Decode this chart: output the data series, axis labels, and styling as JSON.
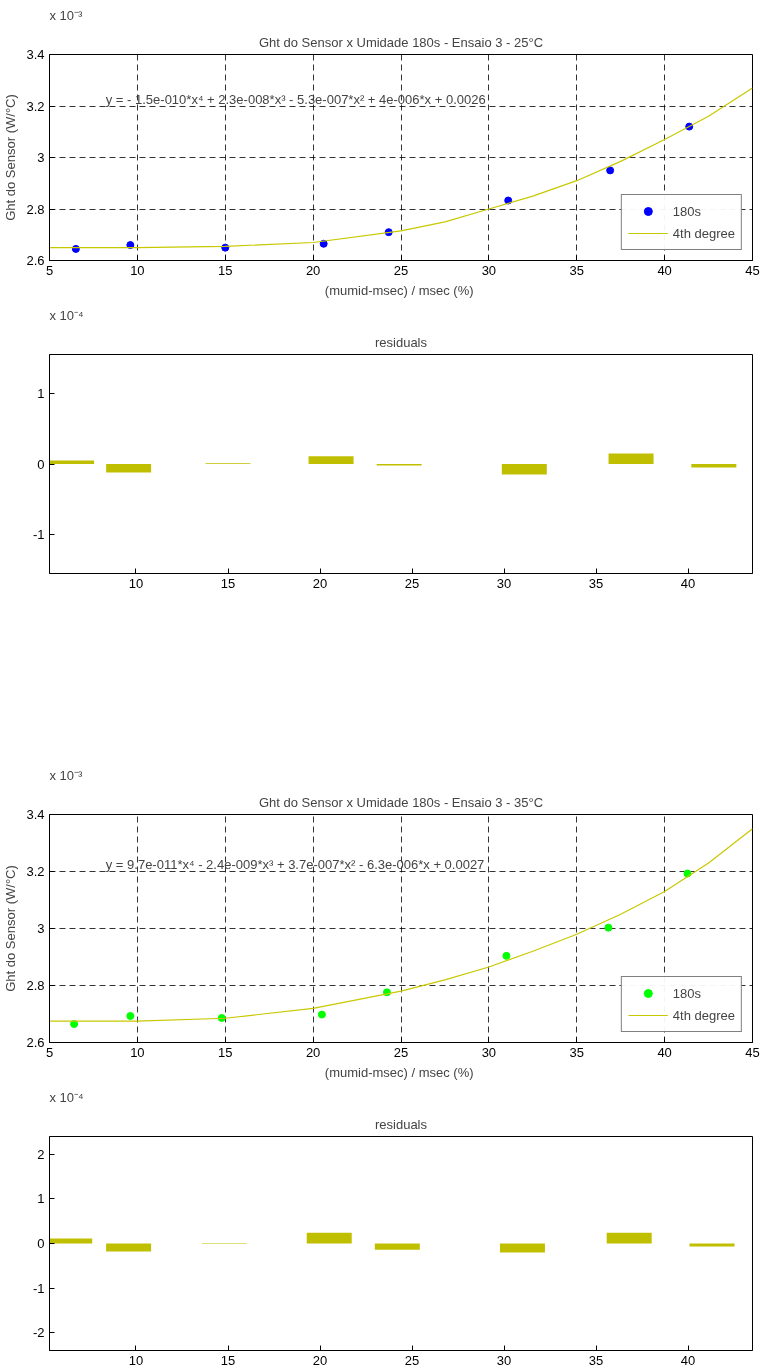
{
  "chart_data": [
    {
      "type": "scatter",
      "title": "Ght do Sensor x Umidade 180s - Ensaio 3 - 25°C",
      "xlabel": "(mumid-msec) / msec  (%)",
      "ylabel": "Ght do Sensor (W/°C)",
      "annotations": [
        "x 10⁻³",
        "y = - 1.5e-010*x⁴ + 2.3e-008*x³ - 5.3e-007*x² + 4e-006*x + 0.0026"
      ],
      "series": [
        {
          "name": "180s",
          "type": "scatter",
          "marker": "circle",
          "color": "#0000ff",
          "x": [
            6.5,
            9.6,
            15.0,
            20.6,
            24.3,
            31.1,
            36.9,
            41.4
          ],
          "values": [
            2.645,
            2.66,
            2.65,
            2.665,
            2.71,
            2.833,
            2.95,
            3.12
          ]
        },
        {
          "name": "4th degree",
          "type": "line",
          "color": "#c8c800",
          "x": [
            5,
            10,
            15,
            20,
            25,
            27.5,
            30,
            32.5,
            35,
            37.5,
            40,
            42.5,
            45
          ],
          "marker": "none",
          "values": [
            2.65,
            2.65,
            2.655,
            2.67,
            2.715,
            2.75,
            2.8,
            2.85,
            2.91,
            2.985,
            3.07,
            3.16,
            3.27
          ]
        }
      ],
      "xlim": [
        5,
        45
      ],
      "ylim": [
        2.6,
        3.4
      ],
      "xticks": [
        5,
        10,
        15,
        20,
        25,
        30,
        35,
        40,
        45
      ],
      "yticks": [
        2.6,
        2.8,
        3,
        3.2,
        3.4
      ],
      "grid": true,
      "legend": "bottom right"
    },
    {
      "type": "bar",
      "title": "residuals",
      "annotations": [
        "x 10⁻⁴"
      ],
      "series": [
        {
          "color": "#bfbf00",
          "x": [
            6.5,
            9.6,
            15.0,
            20.6,
            24.3,
            31.1,
            36.9,
            41.4
          ],
          "values": [
            0.05,
            -0.12,
            0.01,
            0.11,
            -0.02,
            -0.15,
            0.15,
            -0.05
          ]
        }
      ],
      "xlim": [
        5.3,
        43.5
      ],
      "ylim": [
        -1.55,
        1.55
      ],
      "xticks": [
        10,
        15,
        20,
        25,
        30,
        35,
        40
      ],
      "yticks": [
        -1,
        0,
        1
      ],
      "grid": false
    },
    {
      "type": "scatter",
      "title": "Ght do Sensor x Umidade 180s - Ensaio 3 - 35°C",
      "xlabel": "(mumid-msec) / msec  (%)",
      "ylabel": "Ght do Sensor (W/°C)",
      "annotations": [
        "x 10⁻³",
        "y = 9.7e-011*x⁴ - 2.4e-009*x³ + 3.7e-007*x² - 6.3e-006*x + 0.0027"
      ],
      "series": [
        {
          "name": "180s",
          "type": "scatter",
          "marker": "circle",
          "color": "#00ff00",
          "x": [
            6.4,
            9.6,
            14.8,
            20.5,
            24.2,
            31.0,
            36.8,
            41.3
          ],
          "values": [
            2.665,
            2.693,
            2.686,
            2.698,
            2.776,
            2.904,
            3.003,
            3.193
          ]
        },
        {
          "name": "4th degree",
          "type": "line",
          "color": "#c8c800",
          "x": [
            5,
            10,
            15,
            20,
            25,
            27.5,
            30,
            32.5,
            35,
            37.5,
            40,
            42.5,
            45
          ],
          "marker": "none",
          "values": [
            2.675,
            2.675,
            2.685,
            2.72,
            2.78,
            2.82,
            2.865,
            2.92,
            2.98,
            3.05,
            3.13,
            3.23,
            3.35
          ]
        }
      ],
      "xlim": [
        5,
        45
      ],
      "ylim": [
        2.6,
        3.4
      ],
      "xticks": [
        5,
        10,
        15,
        20,
        25,
        30,
        35,
        40,
        45
      ],
      "yticks": [
        2.6,
        2.8,
        3,
        3.2,
        3.4
      ],
      "grid": true,
      "legend": "bottom right"
    },
    {
      "type": "bar",
      "title": "residuals",
      "annotations": [
        "x 10⁻⁴"
      ],
      "series": [
        {
          "color": "#bfbf00",
          "x": [
            6.4,
            9.6,
            14.8,
            20.5,
            24.2,
            31.0,
            36.8,
            41.3
          ],
          "values": [
            0.11,
            -0.18,
            0.01,
            0.24,
            -0.14,
            -0.2,
            0.24,
            -0.07
          ]
        }
      ],
      "xlim": [
        5.3,
        43.5
      ],
      "ylim": [
        -2.4,
        2.4
      ],
      "xticks": [
        10,
        15,
        20,
        25,
        30,
        35,
        40
      ],
      "yticks": [
        -2,
        -1,
        0,
        1,
        2
      ],
      "grid": false
    }
  ]
}
